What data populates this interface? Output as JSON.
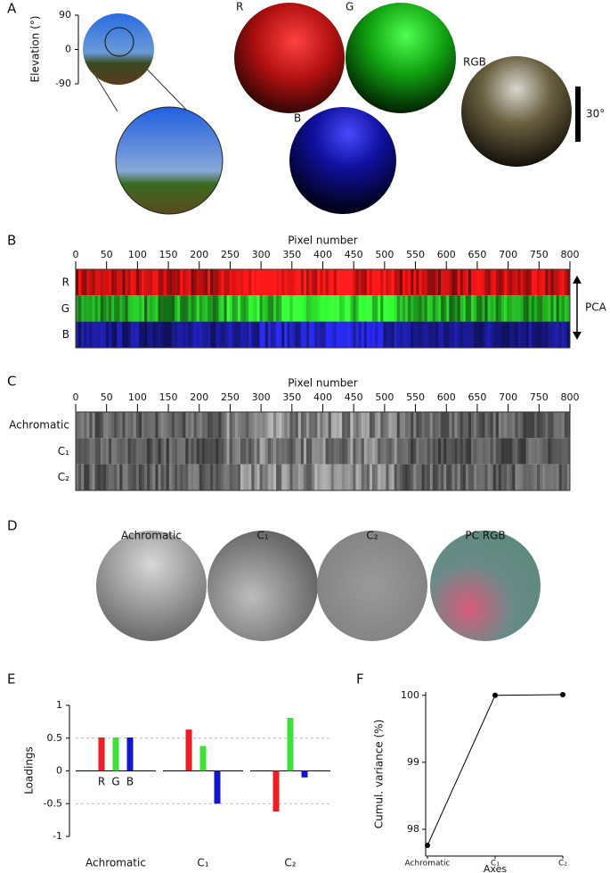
{
  "panel_labels": [
    "A",
    "B",
    "C",
    "D",
    "E",
    "F"
  ],
  "panel_a": {
    "y_label": "Elevation (°)",
    "ylim": [
      -90,
      90
    ],
    "yticks": [
      90,
      0,
      -90
    ],
    "channel_labels": [
      "R",
      "G",
      "B",
      "RGB"
    ],
    "scale_label": "30°"
  },
  "panel_b": {
    "x_label": "Pixel number",
    "xlim": [
      0,
      800
    ],
    "xticks": [
      0,
      50,
      100,
      150,
      200,
      250,
      300,
      350,
      400,
      450,
      500,
      550,
      600,
      650,
      700,
      750,
      800
    ],
    "rows": [
      "R",
      "G",
      "B"
    ],
    "arrow_label": "PCA"
  },
  "panel_c": {
    "x_label": "Pixel number",
    "xlim": [
      0,
      800
    ],
    "xticks": [
      0,
      50,
      100,
      150,
      200,
      250,
      300,
      350,
      400,
      450,
      500,
      550,
      600,
      650,
      700,
      750,
      800
    ],
    "rows": [
      "Achromatic",
      "C₁",
      "C₂"
    ]
  },
  "panel_d": {
    "titles": [
      "Achromatic",
      "C₁",
      "C₂",
      "PC RGB"
    ]
  },
  "chart_data": [
    {
      "type": "bar",
      "y_label": "Loadings",
      "categories": [
        "Achromatic",
        "C₁",
        "C₂"
      ],
      "series": [
        {
          "name": "R",
          "color": "#ee1d23",
          "values": [
            0.51,
            0.63,
            -0.62
          ]
        },
        {
          "name": "G",
          "color": "#3ee03a",
          "values": [
            0.51,
            0.38,
            0.81
          ]
        },
        {
          "name": "B",
          "color": "#1414cc",
          "values": [
            0.51,
            -0.5,
            -0.1
          ]
        }
      ],
      "ylim": [
        -1,
        1
      ],
      "yticks": [
        -1,
        -0.5,
        0,
        0.5,
        1
      ],
      "grid_values": [
        -0.5,
        0.5
      ]
    },
    {
      "type": "line",
      "y_label": "Cumul. variance (%)",
      "x_label": "Axes",
      "categories": [
        "Achromatic",
        "C₁",
        "C₂"
      ],
      "values": [
        97.76,
        100,
        100.01
      ],
      "color": "#000000",
      "ylim": [
        97.6,
        100.05
      ],
      "yticks": [
        98,
        99,
        100
      ]
    }
  ]
}
